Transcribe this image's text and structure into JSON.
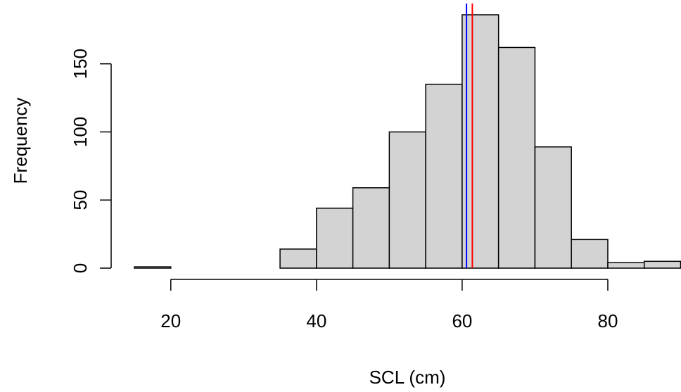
{
  "chart_data": {
    "type": "histogram",
    "x_label": "SCL (cm)",
    "y_label": "Frequency",
    "bins": [
      15,
      20,
      25,
      30,
      35,
      40,
      45,
      50,
      55,
      60,
      65,
      70,
      75,
      80,
      85,
      90
    ],
    "values": [
      1,
      0,
      0,
      0,
      14,
      44,
      59,
      100,
      135,
      186,
      162,
      89,
      21,
      4,
      5
    ],
    "color": "#d3d3d3",
    "xlim": [
      15,
      90
    ],
    "xticks": [
      20,
      40,
      60,
      80
    ],
    "ylim": [
      0,
      186
    ],
    "yticks": [
      0,
      50,
      100,
      150
    ],
    "vlines": [
      {
        "value": 60.6,
        "color": "#0000ff"
      },
      {
        "value": 61.4,
        "color": "#ff0000"
      }
    ]
  }
}
